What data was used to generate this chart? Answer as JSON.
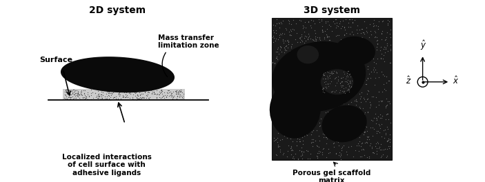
{
  "title_2d": "2D system",
  "title_3d": "3D system",
  "label_surface": "Surface",
  "label_mass_transfer": "Mass transfer\nlimitation zone",
  "label_localized": "Localized interactions\nof cell surface with\nadhesive ligands",
  "label_porous": "Porous gel scaffold\nmatrix",
  "bg_color": "#ffffff",
  "cell_color": "#0a0a0a",
  "line_color": "#000000",
  "text_color": "#000000",
  "title_fontsize": 10,
  "label_fontsize": 7.5,
  "stipple_dark_bg": "#2a2a2a",
  "stipple_dot_color": "#888888"
}
